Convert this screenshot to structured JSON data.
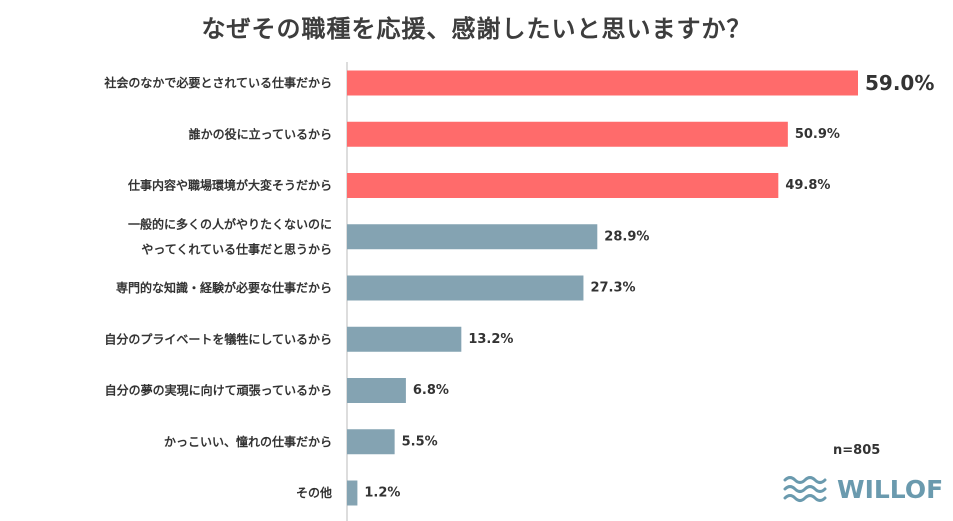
{
  "chart_data": {
    "type": "bar",
    "orientation": "horizontal",
    "title": "なぜその職種を応援、感謝したいと思いますか？",
    "categories": [
      "社会のなかで必要とされている仕事だから",
      "誰かの役に立っているから",
      "仕事内容や職場環境が大変そうだから",
      "一般的に多くの人がやりたくないのに\nやってくれている仕事だと思うから",
      "専門的な知識・経験が必要な仕事だから",
      "自分のプライベートを犠牲にしているから",
      "自分の夢の実現に向けて頑張っているから",
      "かっこいい、憧れの仕事だから",
      "その他"
    ],
    "values": [
      59.0,
      50.9,
      49.8,
      28.9,
      27.3,
      13.2,
      6.8,
      5.5,
      1.2
    ],
    "value_labels": [
      "59.0%",
      "50.9%",
      "49.8%",
      "28.9%",
      "27.3%",
      "13.2%",
      "6.8%",
      "5.5%",
      "1.2%"
    ],
    "highlight_count": 3,
    "colors": {
      "highlight": "#ff6b6b",
      "normal": "#84a3b2",
      "top_value_text": "#f26b6b",
      "axis": "#bbbbbb"
    },
    "xlim": [
      0,
      59.0
    ],
    "grid": false
  },
  "footer": {
    "sample_size": "n=805",
    "logo_text": "WILLOF",
    "logo_icon": "wave-icon"
  }
}
